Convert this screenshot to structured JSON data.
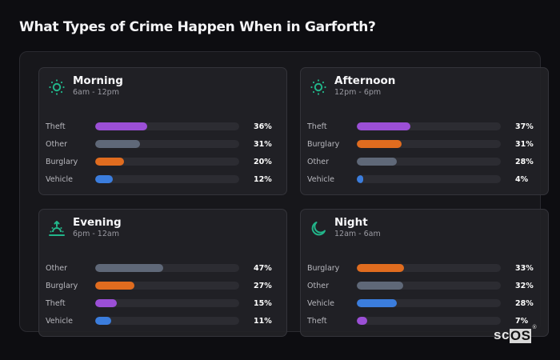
{
  "title": "What Types of Crime Happen When in Garforth?",
  "accent_color": "#22b58a",
  "category_colors": {
    "Theft": "#9b4fd6",
    "Other": "#5f6878",
    "Burglary": "#e06c1f",
    "Vehicle": "#3b7ddd"
  },
  "cards": [
    {
      "title": "Morning",
      "subtitle": "6am - 12pm",
      "icon": "sun-icon",
      "rows": [
        {
          "label": "Theft",
          "value": 36,
          "pct": "36%"
        },
        {
          "label": "Other",
          "value": 31,
          "pct": "31%"
        },
        {
          "label": "Burglary",
          "value": 20,
          "pct": "20%"
        },
        {
          "label": "Vehicle",
          "value": 12,
          "pct": "12%"
        }
      ]
    },
    {
      "title": "Afternoon",
      "subtitle": "12pm - 6pm",
      "icon": "sun-icon",
      "rows": [
        {
          "label": "Theft",
          "value": 37,
          "pct": "37%"
        },
        {
          "label": "Burglary",
          "value": 31,
          "pct": "31%"
        },
        {
          "label": "Other",
          "value": 28,
          "pct": "28%"
        },
        {
          "label": "Vehicle",
          "value": 4,
          "pct": "4%"
        }
      ]
    },
    {
      "title": "Evening",
      "subtitle": "6pm - 12am",
      "icon": "sunset-icon",
      "rows": [
        {
          "label": "Other",
          "value": 47,
          "pct": "47%"
        },
        {
          "label": "Burglary",
          "value": 27,
          "pct": "27%"
        },
        {
          "label": "Theft",
          "value": 15,
          "pct": "15%"
        },
        {
          "label": "Vehicle",
          "value": 11,
          "pct": "11%"
        }
      ]
    },
    {
      "title": "Night",
      "subtitle": "12am - 6am",
      "icon": "moon-icon",
      "rows": [
        {
          "label": "Burglary",
          "value": 33,
          "pct": "33%"
        },
        {
          "label": "Other",
          "value": 32,
          "pct": "32%"
        },
        {
          "label": "Vehicle",
          "value": 28,
          "pct": "28%"
        },
        {
          "label": "Theft",
          "value": 7,
          "pct": "7%"
        }
      ]
    }
  ],
  "logo": {
    "sc": "sc",
    "os": "OS",
    "reg": "®"
  }
}
